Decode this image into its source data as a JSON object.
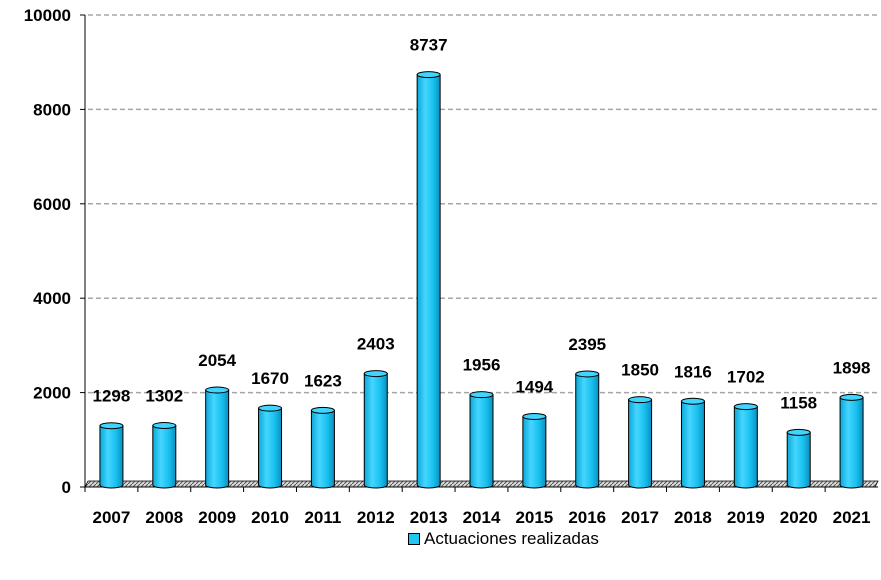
{
  "chart_data": {
    "type": "bar",
    "categories": [
      "2007",
      "2008",
      "2009",
      "2010",
      "2011",
      "2012",
      "2013",
      "2014",
      "2015",
      "2016",
      "2017",
      "2018",
      "2019",
      "2020",
      "2021"
    ],
    "series": [
      {
        "name": "Actuaciones realizadas",
        "values": [
          1298,
          1302,
          2054,
          1670,
          1623,
          2403,
          8737,
          1956,
          1494,
          2395,
          1850,
          1816,
          1702,
          1158,
          1898
        ],
        "color": "#1EC8F0"
      }
    ],
    "data_labels": [
      "1298",
      "1302",
      "2054",
      "1670",
      "1623",
      "2403",
      "8737",
      "1956",
      "1494",
      "2395",
      "1850",
      "1816",
      "1702",
      "1158",
      "1898"
    ],
    "y_ticks": [
      "0",
      "2000",
      "4000",
      "6000",
      "8000",
      "10000"
    ],
    "ylim": [
      0,
      10000
    ],
    "grid": true,
    "legend": {
      "position": "bottom",
      "label": "Actuaciones realizadas"
    }
  }
}
